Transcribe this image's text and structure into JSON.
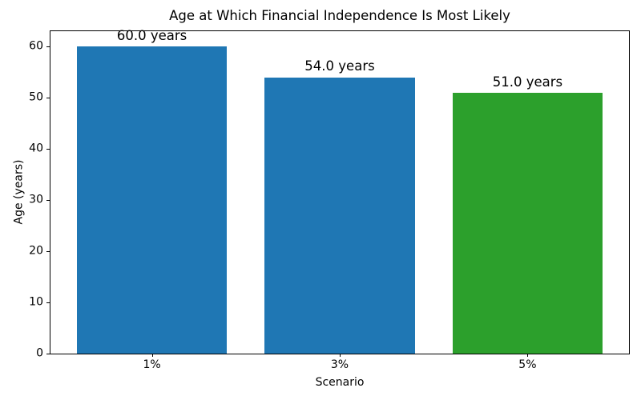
{
  "chart_data": {
    "type": "bar",
    "title": "Age at Which Financial Independence Is Most Likely",
    "xlabel": "Scenario",
    "ylabel": "Age (years)",
    "categories": [
      "1%",
      "3%",
      "5%"
    ],
    "values": [
      60.0,
      54.0,
      51.0
    ],
    "bar_labels": [
      "60.0 years",
      "54.0 years",
      "51.0 years"
    ],
    "bar_colors": [
      "#1f77b4",
      "#1f77b4",
      "#2ca02c"
    ],
    "yticks": [
      0,
      10,
      20,
      30,
      40,
      50,
      60
    ],
    "ylim": [
      0,
      63
    ],
    "xlim": [
      -0.54,
      2.54
    ],
    "bar_width": 0.8,
    "grid": false,
    "legend": null,
    "background_color": "#ffffff",
    "spine_color": "#000000",
    "text_color": "#000000"
  }
}
